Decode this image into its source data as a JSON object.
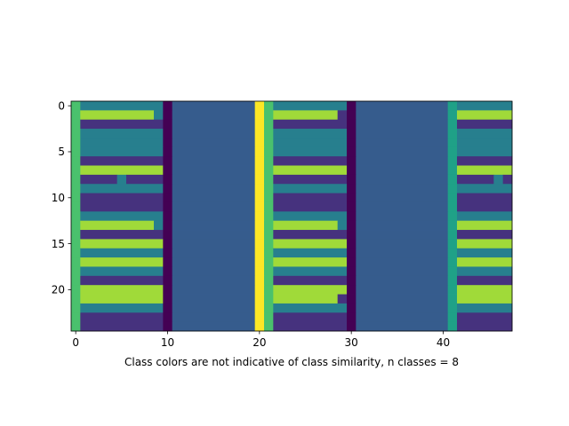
{
  "chart_data": {
    "type": "heatmap",
    "title": "",
    "xlabel": "Class colors are not indicative of class similarity, n classes = 8",
    "ylabel": "",
    "grid": false,
    "x_ticks": [
      0,
      10,
      20,
      30,
      40
    ],
    "y_ticks": [
      0,
      5,
      10,
      15,
      20
    ],
    "xlim": [
      -0.5,
      47.5
    ],
    "ylim": [
      24.5,
      -0.5
    ],
    "n_rows": 25,
    "n_cols": 48,
    "n_classes": 8,
    "colormap": "viridis",
    "class_colors": [
      "#440154",
      "#46327e",
      "#365c8d",
      "#277f8e",
      "#1fa187",
      "#4ac16d",
      "#a0da39",
      "#fde725"
    ],
    "values": [
      [
        5,
        3,
        3,
        3,
        3,
        3,
        3,
        3,
        3,
        3,
        0,
        2,
        2,
        2,
        2,
        2,
        2,
        2,
        2,
        2,
        7,
        5,
        3,
        3,
        3,
        3,
        3,
        3,
        3,
        3,
        0,
        2,
        2,
        2,
        2,
        2,
        2,
        2,
        2,
        2,
        2,
        4,
        3,
        3,
        3,
        3,
        3,
        3
      ],
      [
        5,
        6,
        6,
        6,
        6,
        6,
        6,
        6,
        6,
        3,
        0,
        2,
        2,
        2,
        2,
        2,
        2,
        2,
        2,
        2,
        7,
        5,
        6,
        6,
        6,
        6,
        6,
        6,
        6,
        1,
        0,
        2,
        2,
        2,
        2,
        2,
        2,
        2,
        2,
        2,
        2,
        4,
        6,
        6,
        6,
        6,
        6,
        6
      ],
      [
        5,
        1,
        1,
        1,
        1,
        1,
        1,
        1,
        1,
        1,
        0,
        2,
        2,
        2,
        2,
        2,
        2,
        2,
        2,
        2,
        7,
        5,
        1,
        1,
        1,
        1,
        1,
        1,
        1,
        1,
        0,
        2,
        2,
        2,
        2,
        2,
        2,
        2,
        2,
        2,
        2,
        4,
        1,
        1,
        1,
        1,
        1,
        1
      ],
      [
        5,
        3,
        3,
        3,
        3,
        3,
        3,
        3,
        3,
        3,
        0,
        2,
        2,
        2,
        2,
        2,
        2,
        2,
        2,
        2,
        7,
        5,
        3,
        3,
        3,
        3,
        3,
        3,
        3,
        3,
        0,
        2,
        2,
        2,
        2,
        2,
        2,
        2,
        2,
        2,
        2,
        4,
        3,
        3,
        3,
        3,
        3,
        3
      ],
      [
        5,
        3,
        3,
        3,
        3,
        3,
        3,
        3,
        3,
        3,
        0,
        2,
        2,
        2,
        2,
        2,
        2,
        2,
        2,
        2,
        7,
        5,
        3,
        3,
        3,
        3,
        3,
        3,
        3,
        3,
        0,
        2,
        2,
        2,
        2,
        2,
        2,
        2,
        2,
        2,
        2,
        4,
        3,
        3,
        3,
        3,
        3,
        3
      ],
      [
        5,
        3,
        3,
        3,
        3,
        3,
        3,
        3,
        3,
        3,
        0,
        2,
        2,
        2,
        2,
        2,
        2,
        2,
        2,
        2,
        7,
        5,
        3,
        3,
        3,
        3,
        3,
        3,
        3,
        3,
        0,
        2,
        2,
        2,
        2,
        2,
        2,
        2,
        2,
        2,
        2,
        4,
        3,
        3,
        3,
        3,
        3,
        3
      ],
      [
        5,
        1,
        1,
        1,
        1,
        1,
        1,
        1,
        1,
        1,
        0,
        2,
        2,
        2,
        2,
        2,
        2,
        2,
        2,
        2,
        7,
        5,
        1,
        1,
        1,
        1,
        1,
        1,
        1,
        1,
        0,
        2,
        2,
        2,
        2,
        2,
        2,
        2,
        2,
        2,
        2,
        4,
        1,
        1,
        1,
        1,
        1,
        1
      ],
      [
        5,
        6,
        6,
        6,
        6,
        6,
        6,
        6,
        6,
        6,
        0,
        2,
        2,
        2,
        2,
        2,
        2,
        2,
        2,
        2,
        7,
        5,
        6,
        6,
        6,
        6,
        6,
        6,
        6,
        6,
        0,
        2,
        2,
        2,
        2,
        2,
        2,
        2,
        2,
        2,
        2,
        4,
        6,
        6,
        6,
        6,
        6,
        6
      ],
      [
        5,
        1,
        1,
        1,
        1,
        3,
        1,
        1,
        1,
        1,
        0,
        2,
        2,
        2,
        2,
        2,
        2,
        2,
        2,
        2,
        7,
        5,
        1,
        1,
        1,
        1,
        1,
        1,
        1,
        1,
        0,
        2,
        2,
        2,
        2,
        2,
        2,
        2,
        2,
        2,
        2,
        4,
        1,
        1,
        1,
        1,
        3,
        1
      ],
      [
        5,
        3,
        3,
        3,
        3,
        3,
        3,
        3,
        3,
        3,
        0,
        2,
        2,
        2,
        2,
        2,
        2,
        2,
        2,
        2,
        7,
        5,
        3,
        3,
        3,
        3,
        3,
        3,
        3,
        3,
        0,
        2,
        2,
        2,
        2,
        2,
        2,
        2,
        2,
        2,
        2,
        4,
        3,
        3,
        3,
        3,
        3,
        3
      ],
      [
        5,
        1,
        1,
        1,
        1,
        1,
        1,
        1,
        1,
        1,
        0,
        2,
        2,
        2,
        2,
        2,
        2,
        2,
        2,
        2,
        7,
        5,
        1,
        1,
        1,
        1,
        1,
        1,
        1,
        1,
        0,
        2,
        2,
        2,
        2,
        2,
        2,
        2,
        2,
        2,
        2,
        4,
        1,
        1,
        1,
        1,
        1,
        1
      ],
      [
        5,
        1,
        1,
        1,
        1,
        1,
        1,
        1,
        1,
        1,
        0,
        2,
        2,
        2,
        2,
        2,
        2,
        2,
        2,
        2,
        7,
        5,
        1,
        1,
        1,
        1,
        1,
        1,
        1,
        1,
        0,
        2,
        2,
        2,
        2,
        2,
        2,
        2,
        2,
        2,
        2,
        4,
        1,
        1,
        1,
        1,
        1,
        1
      ],
      [
        5,
        3,
        3,
        3,
        3,
        3,
        3,
        3,
        3,
        3,
        0,
        2,
        2,
        2,
        2,
        2,
        2,
        2,
        2,
        2,
        7,
        5,
        3,
        3,
        3,
        3,
        3,
        3,
        3,
        3,
        0,
        2,
        2,
        2,
        2,
        2,
        2,
        2,
        2,
        2,
        2,
        4,
        3,
        3,
        3,
        3,
        3,
        3
      ],
      [
        5,
        6,
        6,
        6,
        6,
        6,
        6,
        6,
        6,
        3,
        0,
        2,
        2,
        2,
        2,
        2,
        2,
        2,
        2,
        2,
        7,
        5,
        6,
        6,
        6,
        6,
        6,
        6,
        6,
        3,
        0,
        2,
        2,
        2,
        2,
        2,
        2,
        2,
        2,
        2,
        2,
        4,
        6,
        6,
        6,
        6,
        6,
        6
      ],
      [
        5,
        1,
        1,
        1,
        1,
        1,
        1,
        1,
        1,
        1,
        0,
        2,
        2,
        2,
        2,
        2,
        2,
        2,
        2,
        2,
        7,
        5,
        1,
        1,
        1,
        1,
        1,
        1,
        1,
        1,
        0,
        2,
        2,
        2,
        2,
        2,
        2,
        2,
        2,
        2,
        2,
        4,
        1,
        1,
        1,
        1,
        1,
        1
      ],
      [
        5,
        6,
        6,
        6,
        6,
        6,
        6,
        6,
        6,
        6,
        0,
        2,
        2,
        2,
        2,
        2,
        2,
        2,
        2,
        2,
        7,
        5,
        6,
        6,
        6,
        6,
        6,
        6,
        6,
        6,
        0,
        2,
        2,
        2,
        2,
        2,
        2,
        2,
        2,
        2,
        2,
        4,
        6,
        6,
        6,
        6,
        6,
        6
      ],
      [
        5,
        3,
        3,
        3,
        3,
        3,
        3,
        3,
        3,
        3,
        0,
        2,
        2,
        2,
        2,
        2,
        2,
        2,
        2,
        2,
        7,
        5,
        3,
        3,
        3,
        3,
        3,
        3,
        3,
        3,
        0,
        2,
        2,
        2,
        2,
        2,
        2,
        2,
        2,
        2,
        2,
        4,
        3,
        3,
        3,
        3,
        3,
        3
      ],
      [
        5,
        6,
        6,
        6,
        6,
        6,
        6,
        6,
        6,
        6,
        0,
        2,
        2,
        2,
        2,
        2,
        2,
        2,
        2,
        2,
        7,
        5,
        6,
        6,
        6,
        6,
        6,
        6,
        6,
        6,
        0,
        2,
        2,
        2,
        2,
        2,
        2,
        2,
        2,
        2,
        2,
        4,
        6,
        6,
        6,
        6,
        6,
        6
      ],
      [
        5,
        3,
        3,
        3,
        3,
        3,
        3,
        3,
        3,
        3,
        0,
        2,
        2,
        2,
        2,
        2,
        2,
        2,
        2,
        2,
        7,
        5,
        3,
        3,
        3,
        3,
        3,
        3,
        3,
        3,
        0,
        2,
        2,
        2,
        2,
        2,
        2,
        2,
        2,
        2,
        2,
        4,
        3,
        3,
        3,
        3,
        3,
        3
      ],
      [
        5,
        1,
        1,
        1,
        1,
        1,
        1,
        1,
        1,
        1,
        0,
        2,
        2,
        2,
        2,
        2,
        2,
        2,
        2,
        2,
        7,
        5,
        1,
        1,
        1,
        1,
        1,
        1,
        1,
        1,
        0,
        2,
        2,
        2,
        2,
        2,
        2,
        2,
        2,
        2,
        2,
        4,
        1,
        1,
        1,
        1,
        1,
        1
      ],
      [
        5,
        6,
        6,
        6,
        6,
        6,
        6,
        6,
        6,
        6,
        0,
        2,
        2,
        2,
        2,
        2,
        2,
        2,
        2,
        2,
        7,
        5,
        6,
        6,
        6,
        6,
        6,
        6,
        6,
        6,
        0,
        2,
        2,
        2,
        2,
        2,
        2,
        2,
        2,
        2,
        2,
        4,
        6,
        6,
        6,
        6,
        6,
        6
      ],
      [
        5,
        6,
        6,
        6,
        6,
        6,
        6,
        6,
        6,
        6,
        0,
        2,
        2,
        2,
        2,
        2,
        2,
        2,
        2,
        2,
        7,
        5,
        6,
        6,
        6,
        6,
        6,
        6,
        6,
        1,
        0,
        2,
        2,
        2,
        2,
        2,
        2,
        2,
        2,
        2,
        2,
        4,
        6,
        6,
        6,
        6,
        6,
        6
      ],
      [
        5,
        3,
        3,
        3,
        3,
        3,
        3,
        3,
        3,
        3,
        0,
        2,
        2,
        2,
        2,
        2,
        2,
        2,
        2,
        2,
        7,
        5,
        3,
        3,
        3,
        3,
        3,
        3,
        3,
        3,
        0,
        2,
        2,
        2,
        2,
        2,
        2,
        2,
        2,
        2,
        2,
        4,
        3,
        3,
        3,
        3,
        3,
        3
      ],
      [
        5,
        1,
        1,
        1,
        1,
        1,
        1,
        1,
        1,
        1,
        0,
        2,
        2,
        2,
        2,
        2,
        2,
        2,
        2,
        2,
        7,
        5,
        1,
        1,
        1,
        1,
        1,
        1,
        1,
        1,
        0,
        2,
        2,
        2,
        2,
        2,
        2,
        2,
        2,
        2,
        2,
        4,
        1,
        1,
        1,
        1,
        1,
        1
      ],
      [
        5,
        1,
        1,
        1,
        1,
        1,
        1,
        1,
        1,
        1,
        0,
        2,
        2,
        2,
        2,
        2,
        2,
        2,
        2,
        2,
        7,
        5,
        1,
        1,
        1,
        1,
        1,
        1,
        1,
        1,
        0,
        2,
        2,
        2,
        2,
        2,
        2,
        2,
        2,
        2,
        2,
        4,
        1,
        1,
        1,
        1,
        1,
        1
      ]
    ]
  }
}
